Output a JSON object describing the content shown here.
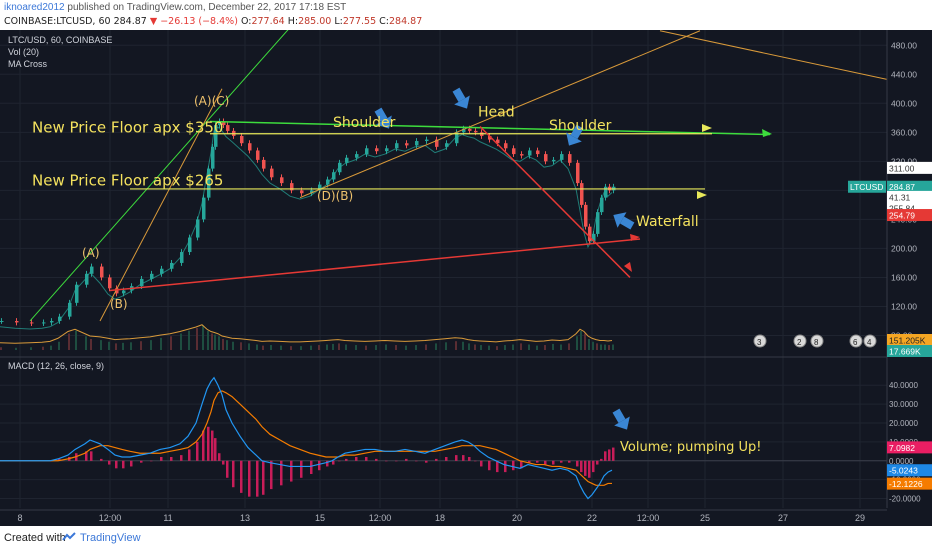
{
  "header": {
    "author": "iknoared2012",
    "published": " published on TradingView.com, December 22, 2017 17:18 EST",
    "symbol": "COINBASE:LTCUSD, 60",
    "last": "284.87",
    "arrow": "▼",
    "change": "−26.13 (−8.4%)",
    "o_label": "O:",
    "o_val": "277.64",
    "h_label": "H:",
    "h_val": "285.00",
    "l_label": "L:",
    "l_val": "277.55",
    "c_label": "C:",
    "c_val": "284.87"
  },
  "legend": {
    "symbol": "LTC/USD, 60, COINBASE",
    "vol": "Vol (20)",
    "ma": "MA Cross",
    "macd": "MACD (12, 26, close, 9)"
  },
  "price_axis": {
    "ticks": [
      "480.00",
      "440.00",
      "400.00",
      "360.00",
      "320.00",
      "280.00",
      "240.00",
      "200.00",
      "160.00",
      "120.00",
      "80.00"
    ],
    "ticks_v": [
      480,
      440,
      400,
      360,
      320,
      280,
      240,
      200,
      160,
      120,
      80
    ]
  },
  "macd_axis": {
    "ticks": [
      "40.0000",
      "30.0000",
      "20.0000",
      "10.0000",
      "0.0000",
      "-10.0000",
      "-20.0000"
    ],
    "ticks_v": [
      40,
      30,
      20,
      10,
      0,
      -10,
      -20
    ]
  },
  "x_axis": {
    "ticks": [
      "8",
      "12:00",
      "11",
      "13",
      "15",
      "12:00",
      "18",
      "20",
      "22",
      "12:00",
      "25",
      "27",
      "29"
    ],
    "ticks_x": [
      20,
      110,
      168,
      245,
      320,
      380,
      440,
      517,
      592,
      648,
      705,
      783,
      860
    ]
  },
  "price_labels": [
    {
      "text": "311.00",
      "bg": "#ffffff",
      "fg": "#333333",
      "v": 311
    },
    {
      "text": "LTCUSD",
      "bg": "#26a69a",
      "fg": "#ffffff",
      "v": 285,
      "narrow": true
    },
    {
      "text": "284.87",
      "bg": "#26a69a",
      "fg": "#ffffff",
      "v": 285
    },
    {
      "text": "41.31",
      "bg": "#ffffff",
      "fg": "#333333",
      "v": 271
    },
    {
      "text": "255.84",
      "bg": "#ffffff",
      "fg": "#333333",
      "v": 256
    },
    {
      "text": "254.79",
      "bg": "#e53935",
      "fg": "#ffffff",
      "v": 246
    }
  ],
  "vol_labels": [
    {
      "text": "151.205K",
      "bg": "#f5a623",
      "fg": "#222222",
      "y": 310
    },
    {
      "text": "17.669K",
      "bg": "#26a69a",
      "fg": "#ffffff",
      "y": 321
    }
  ],
  "macd_labels": [
    {
      "text": "7.0982",
      "bg": "#e91e63",
      "fg": "#ffffff",
      "v": 7.1
    },
    {
      "text": "-5.0243",
      "bg": "#1e88e5",
      "fg": "#ffffff",
      "v": -5.0
    },
    {
      "text": "-12.1226",
      "bg": "#f57c00",
      "fg": "#ffffff",
      "v": -12.1
    }
  ],
  "annotations": [
    {
      "text": "New Price Floor apx $350",
      "x": 32,
      "v": 360,
      "size": 15
    },
    {
      "text": "New Price Floor apx $265",
      "x": 32,
      "v": 287,
      "size": 15
    },
    {
      "text": "Shoulder",
      "x": 333,
      "v": 367,
      "size": 14
    },
    {
      "text": "Head",
      "x": 478,
      "v": 382,
      "size": 14
    },
    {
      "text": "Shoulder",
      "x": 549,
      "v": 363,
      "size": 14
    },
    {
      "text": "Waterfall",
      "x": 636,
      "v": 231,
      "size": 14
    },
    {
      "text": "Volume; pumping Up!",
      "x": 620,
      "macd": 1,
      "size": 13
    }
  ],
  "wave_labels": [
    {
      "text": "(A)(C)",
      "x": 194,
      "v": 398
    },
    {
      "text": "(D)(B)",
      "x": 317,
      "v": 267
    },
    {
      "text": "(A)",
      "x": 82,
      "v": 188
    },
    {
      "text": "(B)",
      "x": 110,
      "v": 118
    }
  ],
  "events": [
    "3",
    "2",
    "8",
    "6",
    "4"
  ],
  "footer": {
    "created": "Created with",
    "brand": "TradingView"
  },
  "colors": {
    "bg": "#131722",
    "up": "#26a69a",
    "down": "#ef5350",
    "annotation": "#f4e25e",
    "floor": "#e8e85a",
    "neck": "#3ddc3d",
    "red_line": "#e53935",
    "orange": "#d99a3a",
    "macd": "#2196f3",
    "signal": "#f57c00",
    "hist": "#e91e63",
    "arrow": "#3a86d4",
    "wave": "#f0c36d"
  },
  "chart_data": {
    "type": "candlestick",
    "title": "LTC/USD, 60, COINBASE",
    "price_ylim": [
      60,
      490
    ],
    "macd_ylim": [
      -25,
      47
    ],
    "x": [
      0,
      15,
      30,
      42,
      50,
      58,
      68,
      75,
      85,
      90,
      100,
      108,
      115,
      122,
      130,
      140,
      150,
      160,
      170,
      180,
      188,
      196,
      202,
      207,
      211,
      214,
      218,
      222,
      226,
      232,
      240,
      248,
      256,
      262,
      270,
      280,
      290,
      300,
      310,
      318,
      326,
      332,
      338,
      345,
      355,
      365,
      375,
      385,
      395,
      405,
      415,
      425,
      435,
      445,
      455,
      462,
      468,
      474,
      480,
      488,
      496,
      504,
      512,
      520,
      528,
      536,
      544,
      552,
      560,
      568,
      576,
      580,
      584,
      588,
      592,
      596,
      600,
      604,
      608,
      612
    ],
    "price": [
      100,
      98,
      97,
      98,
      100,
      106,
      125,
      150,
      165,
      175,
      160,
      145,
      138,
      142,
      148,
      158,
      165,
      172,
      180,
      195,
      215,
      240,
      270,
      310,
      340,
      370,
      375,
      370,
      362,
      355,
      345,
      335,
      322,
      310,
      298,
      290,
      280,
      276,
      280,
      288,
      295,
      305,
      318,
      325,
      330,
      338,
      334,
      338,
      345,
      342,
      348,
      350,
      340,
      345,
      360,
      365,
      362,
      360,
      355,
      350,
      345,
      338,
      330,
      328,
      335,
      330,
      320,
      322,
      330,
      318,
      290,
      260,
      230,
      210,
      220,
      250,
      270,
      285,
      280,
      285
    ],
    "macd": [
      0,
      0,
      0,
      0,
      0,
      1,
      3,
      6,
      9,
      11,
      9,
      6,
      3,
      2,
      2,
      3,
      4,
      6,
      7,
      9,
      13,
      20,
      30,
      38,
      42,
      44,
      40,
      35,
      27,
      20,
      13,
      7,
      3,
      0,
      -1,
      -2,
      -3,
      -3,
      -3,
      -2,
      -1,
      0,
      2,
      4,
      5,
      6,
      6,
      5,
      5,
      6,
      5,
      4,
      6,
      8,
      10,
      11,
      10,
      8,
      5,
      2,
      0,
      -2,
      -3,
      -4,
      -2,
      -3,
      -4,
      -5,
      -4,
      -5,
      -8,
      -13,
      -17,
      -20,
      -18,
      -15,
      -12,
      -8,
      -6,
      -5
    ],
    "signal": [
      0,
      0,
      0,
      0,
      0,
      0,
      1,
      2,
      4,
      6,
      8,
      8,
      7,
      6,
      5,
      4,
      4,
      4,
      5,
      6,
      7,
      10,
      14,
      20,
      26,
      32,
      36,
      37,
      36,
      34,
      30,
      26,
      22,
      18,
      14,
      11,
      8,
      6,
      4,
      3,
      2,
      2,
      2,
      3,
      3,
      4,
      5,
      5,
      5,
      5,
      5,
      5,
      5,
      6,
      7,
      8,
      8,
      8,
      8,
      7,
      6,
      4,
      2,
      0,
      -1,
      -2,
      -2,
      -3,
      -3,
      -4,
      -5,
      -7,
      -9,
      -11,
      -12,
      -13,
      -13,
      -13,
      -12,
      -12
    ],
    "volume": [
      5,
      4,
      5,
      6,
      8,
      15,
      30,
      35,
      25,
      20,
      18,
      15,
      12,
      13,
      14,
      16,
      18,
      22,
      25,
      30,
      35,
      40,
      45,
      35,
      30,
      28,
      25,
      20,
      18,
      15,
      14,
      12,
      10,
      8,
      9,
      8,
      7,
      7,
      8,
      9,
      10,
      11,
      12,
      10,
      9,
      8,
      9,
      10,
      9,
      8,
      9,
      10,
      12,
      14,
      16,
      15,
      12,
      10,
      9,
      8,
      7,
      9,
      10,
      12,
      10,
      8,
      9,
      11,
      10,
      12,
      25,
      35,
      30,
      20,
      15,
      12,
      10,
      10,
      9,
      10
    ]
  }
}
